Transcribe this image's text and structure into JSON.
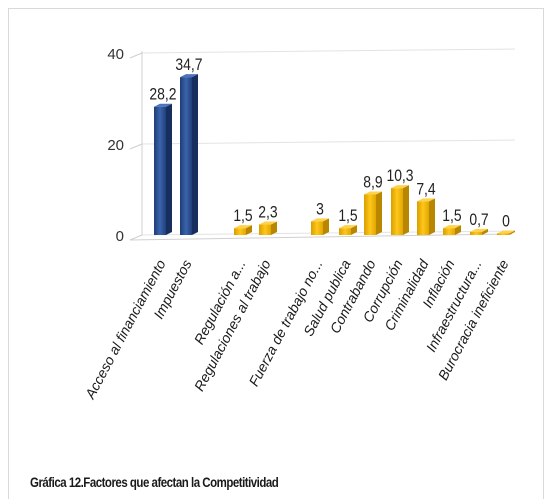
{
  "caption": "Gráfica 12.Factores que afectan la Competitividad",
  "chart_data": {
    "type": "bar",
    "title": "",
    "xlabel": "",
    "ylabel": "",
    "ylim": [
      0,
      40
    ],
    "yticks": [
      0,
      20,
      40
    ],
    "grid": true,
    "categories": [
      "Acceso al financiamiento",
      "Impuestos",
      "Regulación a...",
      "Regulaciones al trabajo",
      "Fuerza de trabajo no...",
      "Salud publica",
      "Contrabando",
      "Corrupción",
      "Criminalidad",
      "Inflación",
      "Infraestructura...",
      "Burocracia ineficiente"
    ],
    "values": [
      28.2,
      34.7,
      1.5,
      2.3,
      3,
      1.5,
      8.9,
      10.3,
      7.4,
      1.5,
      0.7,
      0
    ],
    "value_labels": [
      "28,2",
      "34,7",
      "1,5",
      "2,3",
      "3",
      "1,5",
      "8,9",
      "10,3",
      "7,4",
      "1,5",
      "0,7",
      "0"
    ],
    "colors": {
      "primary": "#2f5597",
      "secondary": "#ffc000",
      "primary_items": [
        "Acceso al financiamiento",
        "Impuestos"
      ]
    }
  }
}
